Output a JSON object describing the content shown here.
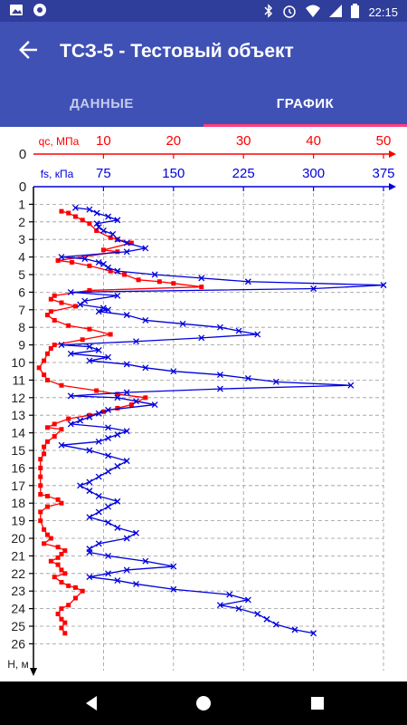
{
  "status": {
    "time": "22:15",
    "left_icons": [
      "image-icon",
      "app-icon"
    ],
    "right_icons": [
      "bluetooth-icon",
      "alarm-icon",
      "wifi-icon",
      "signal-icon",
      "battery-icon"
    ]
  },
  "appbar": {
    "title": "ТСЗ-5 - Тестовый объект",
    "back_icon": "arrow-back-icon"
  },
  "tabs": [
    {
      "label": "ДАННЫЕ",
      "selected": false
    },
    {
      "label": "ГРАФИК",
      "selected": true
    }
  ],
  "colors": {
    "qc": "#ff0000",
    "fs": "#0000dd",
    "appbar": "#3f51b5",
    "statusbar": "#2f3d9b",
    "indicator": "#ff4081"
  },
  "chart_data": {
    "type": "line",
    "xaxis_qc": {
      "label": "qc, МПа",
      "ticks": [
        "0",
        "10",
        "20",
        "30",
        "40",
        "50"
      ],
      "range": [
        0,
        50
      ]
    },
    "xaxis_fs": {
      "label": "fs, кПа",
      "ticks": [
        "0",
        "75",
        "150",
        "225",
        "300",
        "375"
      ],
      "range": [
        0,
        375
      ]
    },
    "yaxis": {
      "label": "Н, м",
      "ticks": [
        "0",
        "1",
        "2",
        "3",
        "4",
        "5",
        "6",
        "7",
        "8",
        "9",
        "10",
        "11",
        "12",
        "13",
        "14",
        "15",
        "16",
        "17",
        "18",
        "19",
        "20",
        "21",
        "22",
        "23",
        "24",
        "25",
        "26"
      ],
      "range": [
        0,
        26
      ],
      "inverted": true
    },
    "grid": true,
    "series": [
      {
        "name": "qc, МПа",
        "axis": "qc",
        "depth": [
          1.4,
          1.5,
          1.7,
          1.9,
          2.1,
          2.5,
          2.9,
          3.0,
          3.2,
          3.6,
          3.7,
          4.2,
          4.3,
          4.5,
          4.8,
          5.0,
          5.3,
          5.4,
          5.5,
          5.7,
          5.9,
          6.2,
          6.4,
          6.6,
          6.8,
          7.1,
          7.3,
          7.6,
          7.9,
          8.1,
          8.4,
          8.7,
          9.0,
          9.2,
          9.5,
          9.9,
          10.3,
          10.7,
          11.0,
          11.3,
          11.6,
          11.8,
          12.0,
          12.4,
          12.6,
          12.8,
          13.0,
          13.2,
          13.5,
          13.7,
          13.8,
          14.2,
          14.5,
          14.8,
          15.2,
          15.5,
          16.0,
          16.5,
          17.0,
          17.5,
          17.6,
          17.8,
          18.0,
          18.2,
          18.5,
          19.0,
          19.5,
          19.8,
          20.0,
          20.3,
          20.5,
          20.7,
          20.9,
          21.1,
          21.3,
          21.5,
          21.8,
          22.0,
          22.2,
          22.5,
          22.7,
          22.8,
          23.0,
          23.4,
          23.8,
          24.0,
          24.3,
          24.6,
          24.8,
          25.1,
          25.4
        ],
        "values": [
          4,
          5,
          6,
          7,
          8,
          9,
          11,
          12,
          14,
          10,
          12,
          3.5,
          5.5,
          8,
          11,
          13,
          15,
          18,
          20,
          24,
          8,
          3,
          2.5,
          4,
          6,
          2.5,
          2,
          3,
          5,
          8,
          11,
          7,
          3,
          2.5,
          2,
          1.5,
          0.8,
          1.5,
          2,
          4,
          9,
          12,
          16,
          14,
          12,
          10,
          8,
          5,
          3,
          2,
          4,
          3,
          2,
          1.5,
          1.5,
          1,
          1,
          1,
          1,
          1,
          2,
          3.5,
          4,
          2,
          1,
          1,
          1.5,
          2,
          2.5,
          1.5,
          3.5,
          4.5,
          4,
          3.5,
          2.5,
          3.5,
          4,
          4.5,
          3,
          4,
          5,
          6,
          7,
          6,
          5,
          4,
          3.5,
          4,
          4.5,
          4,
          4.5
        ]
      },
      {
        "name": "fs, кПа",
        "axis": "fs",
        "depth": [
          1.2,
          1.3,
          1.5,
          1.7,
          1.9,
          2.1,
          2.3,
          2.5,
          2.7,
          3.0,
          3.2,
          3.5,
          3.7,
          4.0,
          4.1,
          4.3,
          4.4,
          4.6,
          4.8,
          5.0,
          5.2,
          5.4,
          5.6,
          5.8,
          6.0,
          6.2,
          6.5,
          6.7,
          6.9,
          7.0,
          7.1,
          7.3,
          7.6,
          7.8,
          8.0,
          8.2,
          8.4,
          8.6,
          8.8,
          9.0,
          9.1,
          9.3,
          9.5,
          9.7,
          9.9,
          10.1,
          10.3,
          10.5,
          10.7,
          10.9,
          11.1,
          11.3,
          11.5,
          11.7,
          11.9,
          12.0,
          12.2,
          12.4,
          12.7,
          12.9,
          13.1,
          13.3,
          13.5,
          13.7,
          13.9,
          14.1,
          14.3,
          14.5,
          14.7,
          15.0,
          15.3,
          15.6,
          15.9,
          16.2,
          16.5,
          16.8,
          17.0,
          17.3,
          17.6,
          17.9,
          18.2,
          18.5,
          18.8,
          19.1,
          19.4,
          19.7,
          20.0,
          20.3,
          20.6,
          20.8,
          21.0,
          21.3,
          21.6,
          21.8,
          22.0,
          22.2,
          22.4,
          22.6,
          22.9,
          23.2,
          23.5,
          23.8,
          24.0,
          24.3,
          24.6,
          24.9,
          25.2,
          25.4
        ],
        "values": [
          45,
          60,
          68,
          80,
          90,
          68,
          70,
          75,
          85,
          90,
          100,
          120,
          100,
          30,
          55,
          70,
          75,
          80,
          90,
          130,
          180,
          230,
          375,
          300,
          40,
          90,
          55,
          50,
          75,
          80,
          70,
          100,
          120,
          160,
          200,
          220,
          240,
          180,
          110,
          30,
          60,
          70,
          40,
          80,
          60,
          100,
          120,
          150,
          200,
          230,
          260,
          340,
          200,
          100,
          40,
          90,
          110,
          130,
          80,
          70,
          60,
          50,
          40,
          80,
          100,
          90,
          80,
          70,
          30,
          60,
          80,
          100,
          90,
          80,
          70,
          60,
          50,
          60,
          70,
          90,
          80,
          70,
          60,
          80,
          90,
          110,
          100,
          70,
          60,
          60,
          80,
          120,
          150,
          100,
          80,
          60,
          90,
          110,
          150,
          210,
          230,
          200,
          220,
          240,
          250,
          260,
          280,
          300
        ]
      }
    ]
  }
}
